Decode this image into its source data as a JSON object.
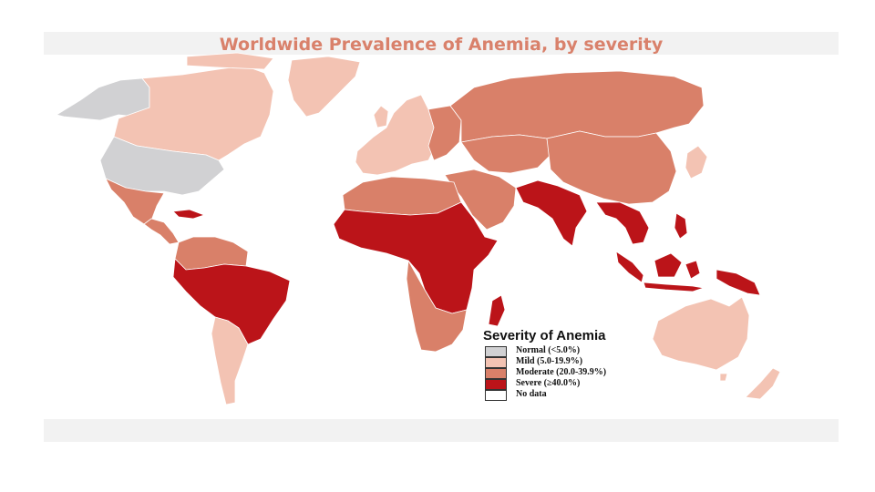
{
  "title": "Worldwide Prevalence of Anemia, by severity",
  "legend": {
    "title": "Severity of Anemia",
    "items": [
      {
        "label": "Normal (<5.0%)",
        "color": "#d1d1d3"
      },
      {
        "label": "Mild (5.0-19.9%)",
        "color": "#f3c3b3"
      },
      {
        "label": "Moderate (20.0-39.9%)",
        "color": "#d98069"
      },
      {
        "label": "Severe (≥40.0%)",
        "color": "#bb1419"
      },
      {
        "label": "No data",
        "color": "#ffffff"
      }
    ]
  },
  "severity_by_region": {
    "Alaska": "Normal",
    "Canada": "Mild",
    "United States": "Normal",
    "Greenland": "Mild",
    "Mexico": "Moderate",
    "Central America": "Moderate",
    "Caribbean": "Severe",
    "Colombia / Venezuela / Guianas": "Moderate",
    "Brazil / Peru / Bolivia": "Severe",
    "Chile / Argentina": "Mild",
    "Western Europe": "Mild",
    "Eastern Europe": "Moderate",
    "Russia": "Moderate",
    "Middle East": "Moderate",
    "Central Asia": "Moderate",
    "China / Mongolia": "Moderate",
    "Japan": "Mild",
    "North Africa": "Moderate",
    "Sub-Saharan Africa": "Severe",
    "Southern Africa": "Moderate",
    "Madagascar": "Severe",
    "South Asia": "Severe",
    "Southeast Asia": "Severe",
    "Indonesia": "Severe",
    "Australia": "Mild",
    "New Zealand": "Mild"
  }
}
